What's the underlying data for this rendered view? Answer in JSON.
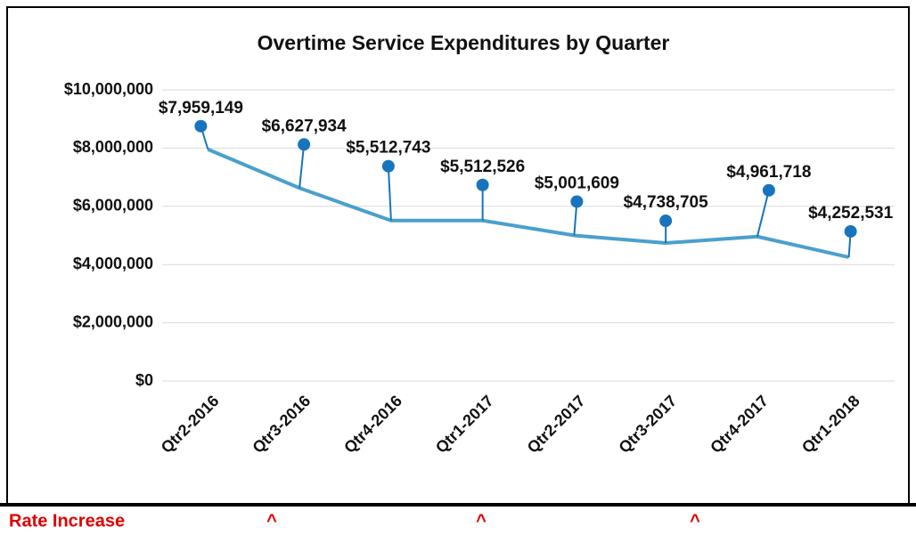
{
  "chart_data": {
    "type": "line",
    "title": "Overtime Service Expenditures by Quarter",
    "categories": [
      "Qtr2-2016",
      "Qtr3-2016",
      "Qtr4-2016",
      "Qtr1-2017",
      "Qtr2-2017",
      "Qtr3-2017",
      "Qtr4-2017",
      "Qtr1-2018"
    ],
    "series": [
      {
        "name": "Overtime Service Expenditures",
        "color": "#4aa0cc",
        "values": [
          7959149,
          6627934,
          5512743,
          5512526,
          5001609,
          4738705,
          4961718,
          4252531
        ],
        "value_labels": [
          "$7,959,149",
          "$6,627,934",
          "$5,512,743",
          "$5,512,526",
          "$5,001,609",
          "$4,738,705",
          "$4,961,718",
          "$4,252,531"
        ]
      }
    ],
    "marker_color": "#1874bd",
    "ylim": [
      0,
      10000000
    ],
    "yticks": [
      {
        "value": 0,
        "label": "$0"
      },
      {
        "value": 2000000,
        "label": "$2,000,000"
      },
      {
        "value": 4000000,
        "label": "$4,000,000"
      },
      {
        "value": 6000000,
        "label": "$6,000,000"
      },
      {
        "value": 8000000,
        "label": "$8,000,000"
      },
      {
        "value": 10000000,
        "label": "$10,000,000"
      }
    ],
    "grid": true
  },
  "footer": {
    "label": "Rate Increase",
    "markers": [
      "^",
      "^",
      "^"
    ]
  }
}
